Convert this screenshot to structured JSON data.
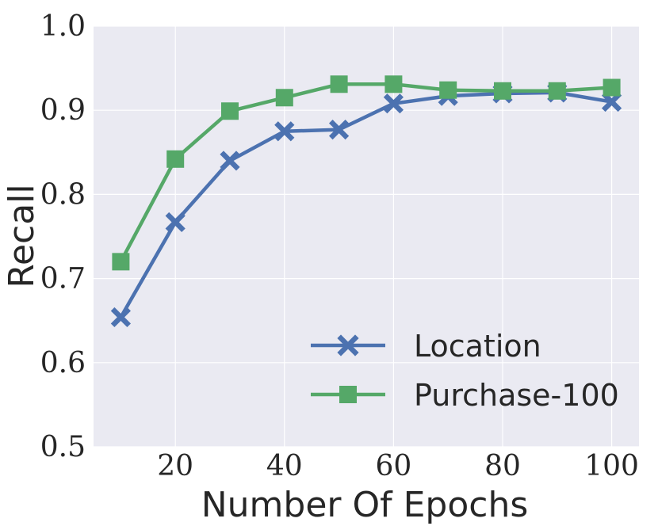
{
  "chart_data": {
    "type": "line",
    "title": "",
    "xlabel": "Number Of Epochs",
    "ylabel": "Recall",
    "x": [
      10,
      20,
      30,
      40,
      50,
      60,
      70,
      80,
      90,
      100
    ],
    "xlim": [
      5,
      105
    ],
    "ylim": [
      0.5,
      1.0
    ],
    "xticks": [
      20,
      40,
      60,
      80,
      100
    ],
    "xtick_labels": [
      "20",
      "40",
      "60",
      "80",
      "100"
    ],
    "yticks": [
      0.5,
      0.6,
      0.7,
      0.8,
      0.9,
      1.0
    ],
    "ytick_labels": [
      "0.5",
      "0.6",
      "0.7",
      "0.8",
      "0.9",
      "1.0"
    ],
    "grid": true,
    "legend_position": "lower-right",
    "series": [
      {
        "name": "Location",
        "marker": "x",
        "color": "#4c72b0",
        "values": [
          0.654,
          0.767,
          0.84,
          0.875,
          0.877,
          0.908,
          0.917,
          0.92,
          0.921,
          0.91
        ]
      },
      {
        "name": "Purchase-100",
        "marker": "square",
        "color": "#55a868",
        "values": [
          0.72,
          0.842,
          0.899,
          0.915,
          0.931,
          0.931,
          0.924,
          0.923,
          0.923,
          0.927
        ]
      }
    ]
  }
}
